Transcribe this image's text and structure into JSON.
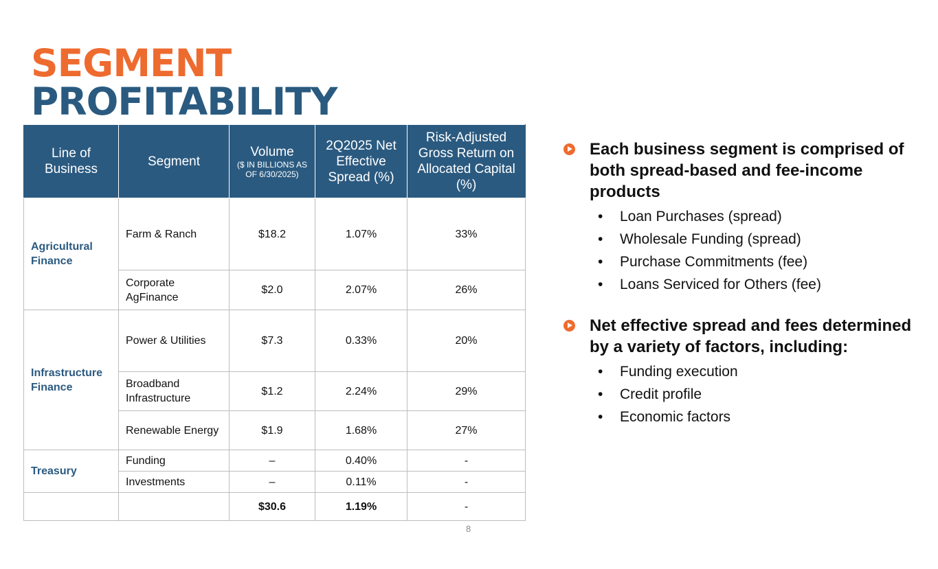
{
  "title": {
    "line1": "SEGMENT",
    "line2": "PROFITABILITY"
  },
  "table": {
    "headers": {
      "lob": "Line of Business",
      "segment": "Segment",
      "volume": "Volume",
      "volume_sub": "($ IN BILLIONS AS OF 6/30/2025)",
      "spread": "2Q2025 Net Effective Spread (%)",
      "return": "Risk-Adjusted Gross Return on Allocated Capital (%)"
    },
    "groups": [
      {
        "name": "Agricultural Finance"
      },
      {
        "name": "Infrastructure Finance"
      },
      {
        "name": "Treasury"
      }
    ],
    "rows": [
      {
        "segment": "Farm & Ranch",
        "volume": "$18.2",
        "spread": "1.07%",
        "return": "33%"
      },
      {
        "segment": "Corporate AgFinance",
        "volume": "$2.0",
        "spread": "2.07%",
        "return": "26%"
      },
      {
        "segment": "Power & Utilities",
        "volume": "$7.3",
        "spread": "0.33%",
        "return": "20%"
      },
      {
        "segment": "Broadband Infrastructure",
        "volume": "$1.2",
        "spread": "2.24%",
        "return": "29%"
      },
      {
        "segment": "Renewable Energy",
        "volume": "$1.9",
        "spread": "1.68%",
        "return": "27%"
      },
      {
        "segment": "Funding",
        "volume": "–",
        "spread": "0.40%",
        "return": "-"
      },
      {
        "segment": "Investments",
        "volume": "–",
        "spread": "0.11%",
        "return": "-"
      }
    ],
    "total": {
      "volume": "$30.6",
      "spread": "1.19%",
      "return": "-"
    }
  },
  "page_number": "8",
  "bullets": [
    {
      "icon": "play-circle-icon",
      "heading": "Each business segment is comprised of both spread-based and fee-income products",
      "items": [
        "Loan Purchases (spread)",
        "Wholesale Funding (spread)",
        "Purchase Commitments (fee)",
        "Loans Serviced for Others (fee)"
      ]
    },
    {
      "icon": "play-circle-icon",
      "heading": "Net effective spread and fees determined by a variety of factors, including:",
      "items": [
        "Funding execution",
        "Credit profile",
        "Economic factors"
      ]
    }
  ],
  "colors": {
    "accent_orange": "#ee6b2f",
    "navy": "#2b5a80",
    "header_bg": "#2b5a80"
  }
}
